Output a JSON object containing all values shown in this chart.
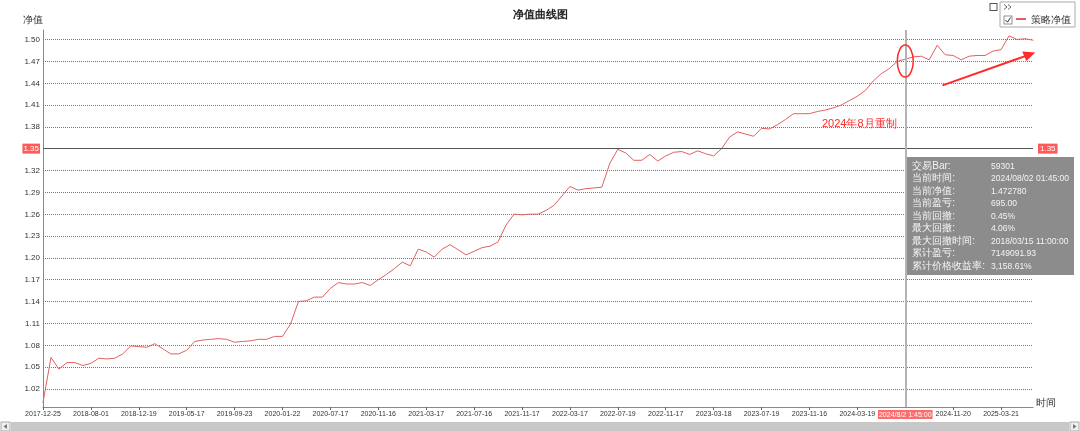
{
  "chart_data": {
    "type": "line",
    "title": "净值曲线图",
    "xlabel": "时间",
    "ylabel": "净值",
    "categories": [
      "2017-12-25",
      null,
      null,
      null,
      null,
      null,
      "2018-08-01",
      null,
      null,
      null,
      null,
      null,
      "2018-12-19",
      null,
      null,
      null,
      null,
      null,
      "2019-05-17",
      null,
      null,
      null,
      null,
      null,
      "2019-09-23",
      null,
      null,
      null,
      null,
      null,
      "2020-01-22",
      null,
      null,
      null,
      null,
      null,
      "2020-07-17",
      null,
      null,
      null,
      null,
      null,
      "2020-11-16",
      null,
      null,
      null,
      null,
      null,
      "2021-03-17",
      null,
      null,
      null,
      null,
      null,
      "2021-07-16",
      null,
      null,
      null,
      null,
      null,
      "2021-11-17",
      null,
      null,
      null,
      null,
      null,
      "2022-03-17",
      null,
      null,
      null,
      null,
      null,
      "2022-07-19",
      null,
      null,
      null,
      null,
      null,
      "2022-11-17",
      null,
      null,
      null,
      null,
      null,
      "2023-03-18",
      null,
      null,
      null,
      null,
      null,
      "2023-07-19",
      null,
      null,
      null,
      null,
      null,
      "2023-11-16",
      null,
      null,
      null,
      null,
      null,
      "2024-03-19",
      null,
      null,
      null,
      null,
      null,
      "2024/8/2 1:45:00",
      null,
      null,
      null,
      null,
      null,
      "2024-11-20",
      null,
      null,
      null,
      null,
      null,
      "2025-03-21",
      null,
      null,
      null,
      null
    ],
    "series": [
      {
        "name": "策略净值",
        "color": "#e06060",
        "values": [
          1.001,
          1.063,
          1.047,
          1.056,
          1.056,
          1.052,
          1.055,
          1.062,
          1.061,
          1.062,
          1.068,
          1.079,
          1.078,
          1.077,
          1.082,
          1.075,
          1.068,
          1.068,
          1.073,
          1.085,
          1.087,
          1.088,
          1.089,
          1.088,
          1.084,
          1.085,
          1.086,
          1.088,
          1.088,
          1.092,
          1.092,
          1.109,
          1.14,
          1.141,
          1.146,
          1.146,
          1.158,
          1.166,
          1.164,
          1.164,
          1.166,
          1.162,
          1.17,
          1.177,
          1.185,
          1.194,
          1.189,
          1.212,
          1.208,
          1.201,
          1.212,
          1.218,
          1.211,
          1.204,
          1.209,
          1.214,
          1.216,
          1.222,
          1.245,
          1.26,
          1.259,
          1.26,
          1.26,
          1.265,
          1.272,
          1.285,
          1.298,
          1.293,
          1.295,
          1.296,
          1.297,
          1.33,
          1.349,
          1.344,
          1.334,
          1.334,
          1.342,
          1.333,
          1.34,
          1.345,
          1.346,
          1.342,
          1.347,
          1.343,
          1.34,
          1.35,
          1.366,
          1.373,
          1.37,
          1.367,
          1.378,
          1.377,
          1.383,
          1.39,
          1.398,
          1.398,
          1.398,
          1.401,
          1.403,
          1.406,
          1.41,
          1.416,
          1.422,
          1.43,
          1.443,
          1.453,
          1.46,
          1.47,
          1.473,
          1.476,
          1.477,
          1.472,
          1.492,
          1.479,
          1.478,
          1.472,
          1.477,
          1.478,
          1.478,
          1.484,
          1.486,
          1.505,
          1.5,
          1.501,
          1.499
        ]
      }
    ],
    "ylim": [
      0.995,
      1.513
    ],
    "yticks": [
      1.02,
      1.05,
      1.08,
      1.11,
      1.14,
      1.17,
      {
        "value": 1.2,
        "label": "1.20"
      },
      1.23,
      1.26,
      1.29,
      1.32,
      1.35,
      1.38,
      1.41,
      1.44,
      1.47,
      {
        "value": 1.5,
        "label": "1.50"
      }
    ],
    "grid": "y",
    "legend": "top right",
    "ref_lines": [
      {
        "axis": "y",
        "value": 1.35,
        "label": "1.35",
        "color": "#555555"
      },
      {
        "axis": "x",
        "value": "2024/8/2 1:45:00",
        "color": "#b4b4b4"
      }
    ],
    "annotations": [
      "2024年8月重制",
      "交易Bar:",
      "59301",
      "当前时间:",
      "2024/08/02 01:45:00",
      "当前净值:",
      "1.472780",
      "当前盈亏:",
      "695.00",
      "当前回撤:",
      "0.45%",
      "最大回撤:",
      "4.06%",
      "最大回撤时间:",
      "2018/03/15 11:00:00",
      "累计盈亏:",
      "7149091.93",
      "累计价格收益率:",
      "3,158.61%"
    ]
  }
}
